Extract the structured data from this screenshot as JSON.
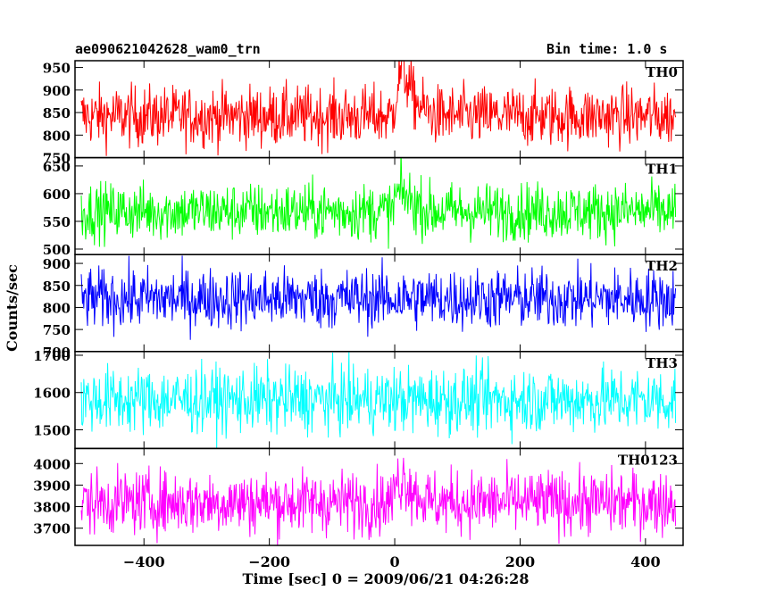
{
  "header": {
    "title": "ae090621042628_wam0_trn",
    "bin_time": "Bin time: 1.0 s"
  },
  "chart_data": {
    "type": "line",
    "x_label": "Time [sec] 0 = 2009/06/21 04:26:28",
    "y_label": "Counts/sec",
    "x_range": [
      -510,
      460
    ],
    "x_ticks": [
      -400,
      -200,
      0,
      200,
      400
    ],
    "x_start": -500,
    "x_end": 448,
    "x_step": 1.0,
    "panels": [
      {
        "name": "TH0",
        "color": "#ff0000",
        "ylim": [
          750,
          965
        ],
        "yticks": [
          750,
          800,
          850,
          900,
          950
        ],
        "baseline": 842,
        "noise": 34,
        "features": [
          {
            "x": 0,
            "value": 35
          },
          {
            "x": 10,
            "value": 105
          },
          {
            "x": 20,
            "value": 80
          },
          {
            "x": 30,
            "value": 40
          },
          {
            "x": 45,
            "value": 15
          }
        ]
      },
      {
        "name": "TH1",
        "color": "#00ff00",
        "ylim": [
          490,
          665
        ],
        "yticks": [
          500,
          550,
          600,
          650
        ],
        "baseline": 568,
        "noise": 26,
        "features": [
          {
            "x": 0,
            "value": 25
          },
          {
            "x": 10,
            "value": 35
          },
          {
            "x": 30,
            "value": 15
          }
        ]
      },
      {
        "name": "TH2",
        "color": "#0000ff",
        "ylim": [
          700,
          920
        ],
        "yticks": [
          700,
          750,
          800,
          850,
          900
        ],
        "baseline": 820,
        "noise": 35,
        "features": []
      },
      {
        "name": "TH3",
        "color": "#00ffff",
        "ylim": [
          1450,
          1710
        ],
        "yticks": [
          1500,
          1600,
          1700
        ],
        "baseline": 1580,
        "noise": 45,
        "features": []
      },
      {
        "name": "TH0123",
        "color": "#ff00ff",
        "ylim": [
          3620,
          4070
        ],
        "yticks": [
          3700,
          3800,
          3900,
          4000
        ],
        "baseline": 3820,
        "noise": 75,
        "features": [
          {
            "x": 0,
            "value": 80
          },
          {
            "x": 15,
            "value": 120
          },
          {
            "x": 30,
            "value": 50
          }
        ]
      }
    ]
  }
}
